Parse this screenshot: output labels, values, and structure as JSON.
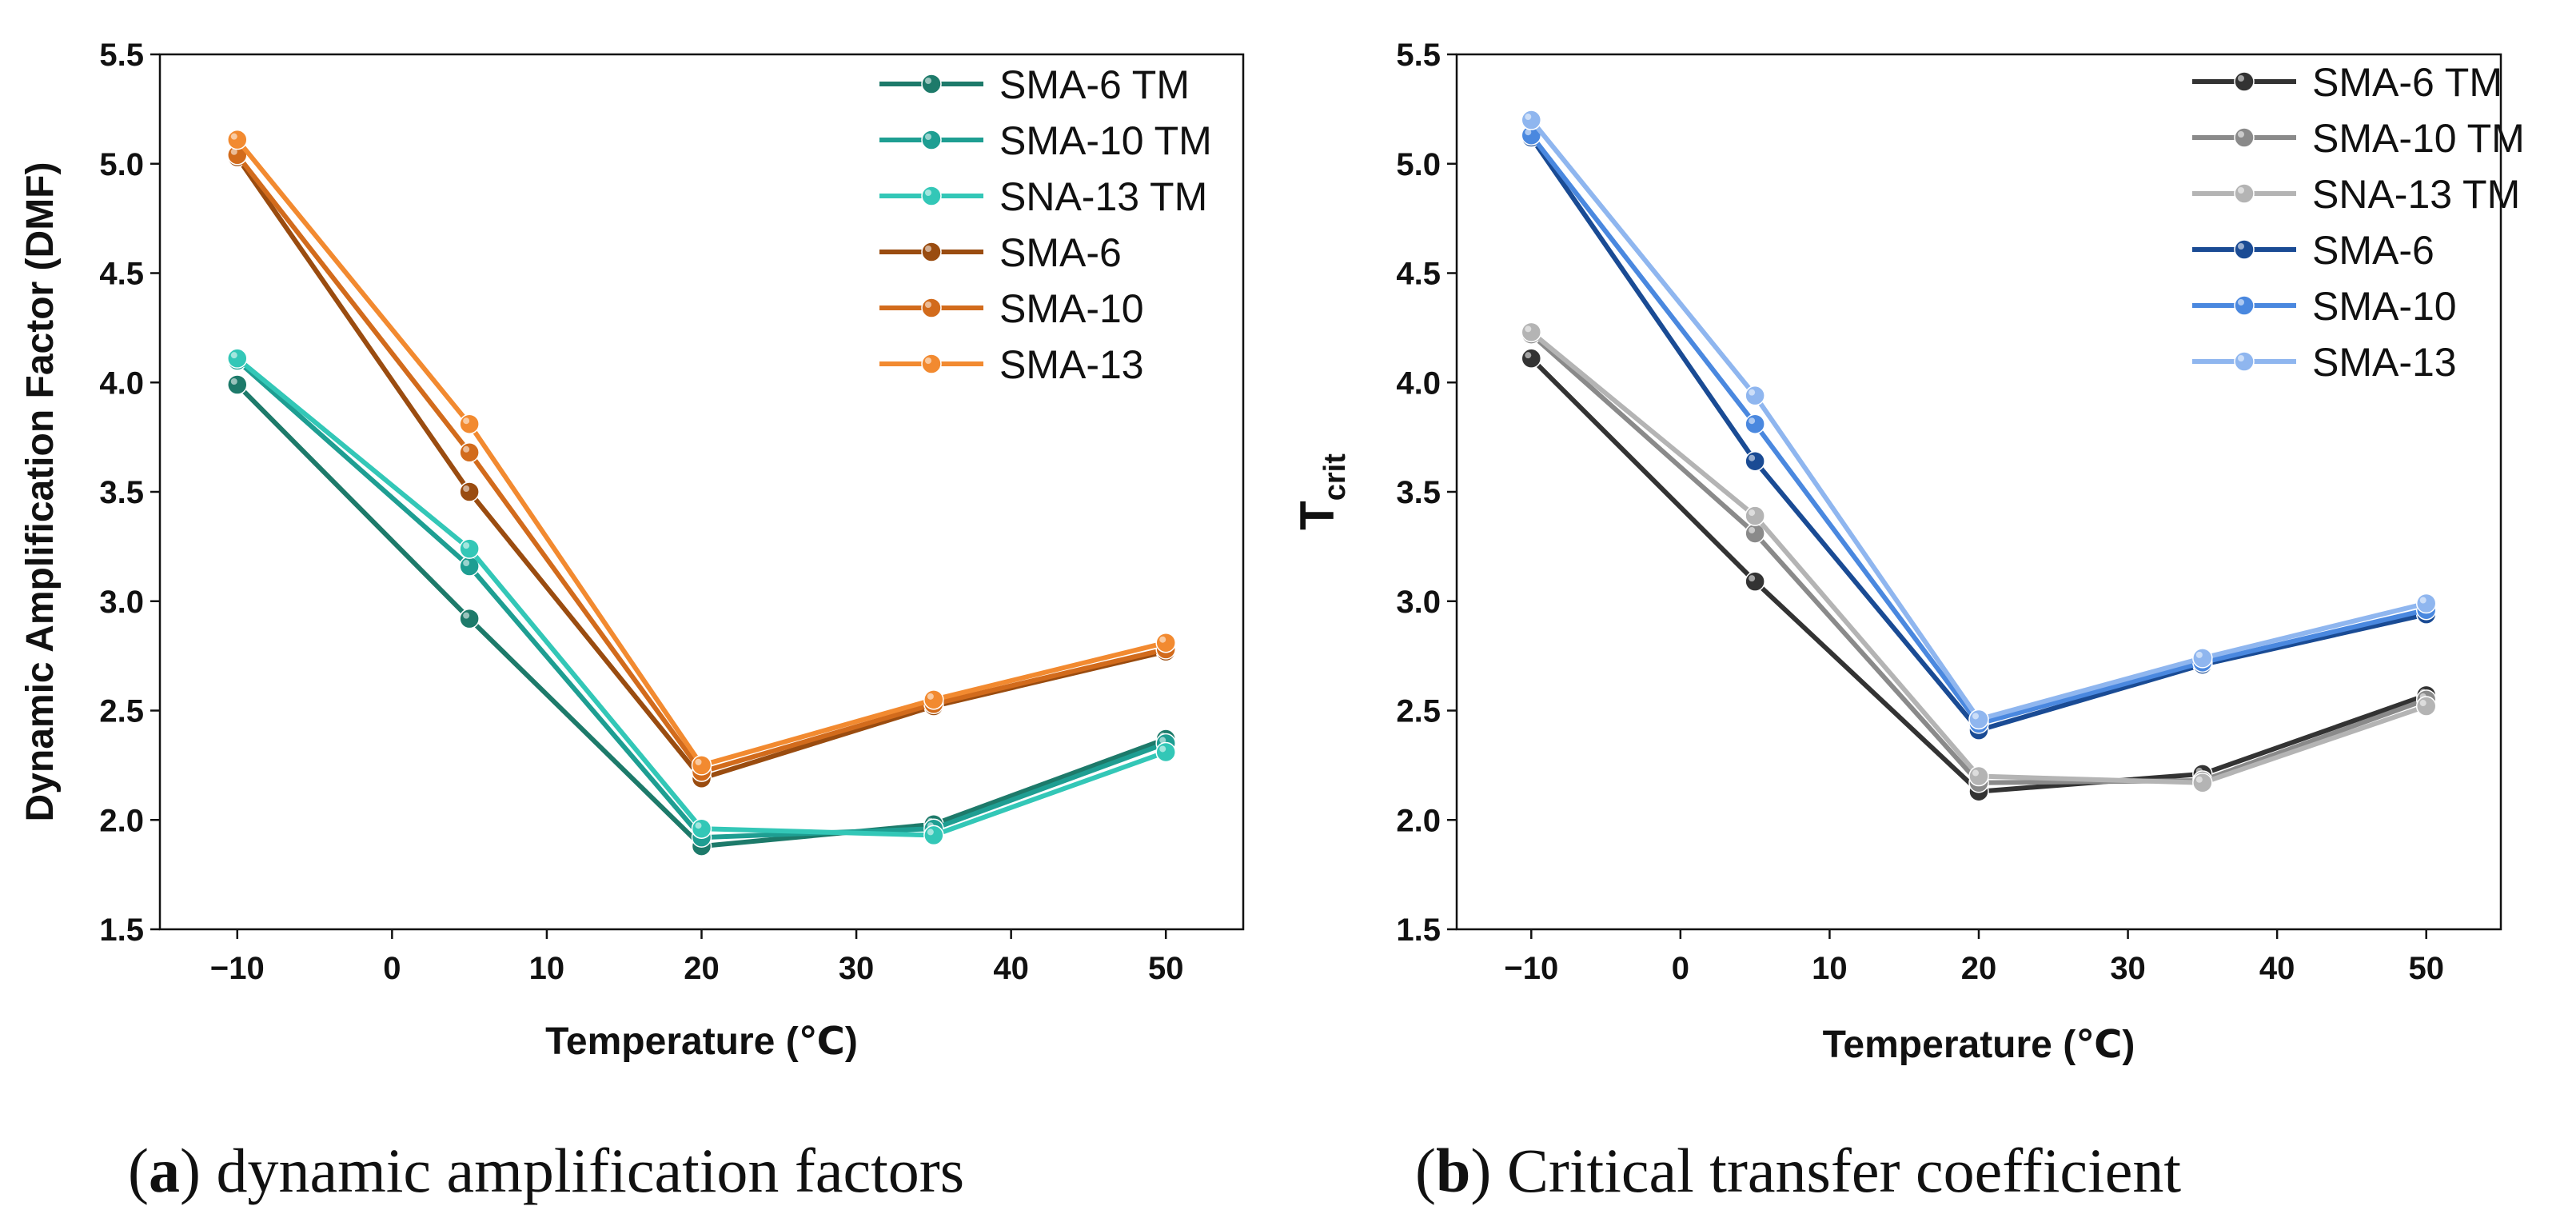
{
  "chart_data": [
    {
      "type": "line",
      "panel": "a",
      "caption_letter": "a",
      "caption_text": "dynamic amplification factors",
      "xlabel": "Temperature (℃)",
      "ylabel": "Dynamic Amplification Factor (DMF)",
      "xlim": [
        -15,
        55
      ],
      "ylim": [
        1.5,
        5.5
      ],
      "xticks": [
        -10,
        0,
        10,
        20,
        30,
        40,
        50
      ],
      "xtick_labels": [
        "−10",
        "0",
        "10",
        "20",
        "30",
        "40",
        "50"
      ],
      "yticks": [
        1.5,
        2.0,
        2.5,
        3.0,
        3.5,
        4.0,
        4.5,
        5.0,
        5.5
      ],
      "ytick_labels": [
        "1.5",
        "2.0",
        "2.5",
        "3.0",
        "3.5",
        "4.0",
        "4.5",
        "5.0",
        "5.5"
      ],
      "x": [
        -10,
        5,
        20,
        35,
        50
      ],
      "legend_position": "top-right",
      "series": [
        {
          "name": "SMA-6 TM",
          "color": "#1d7a6a",
          "values": [
            3.99,
            2.92,
            1.88,
            1.98,
            2.37
          ]
        },
        {
          "name": "SMA-10 TM",
          "color": "#1e9e92",
          "values": [
            4.1,
            3.16,
            1.92,
            1.96,
            2.35
          ]
        },
        {
          "name": "SNA-13 TM",
          "color": "#33c7b7",
          "values": [
            4.11,
            3.24,
            1.96,
            1.93,
            2.31
          ]
        },
        {
          "name": "SMA-6",
          "color": "#9a4c10",
          "values": [
            5.03,
            3.5,
            2.19,
            2.52,
            2.77
          ]
        },
        {
          "name": "SMA-10",
          "color": "#d26b1c",
          "values": [
            5.04,
            3.68,
            2.22,
            2.53,
            2.78
          ]
        },
        {
          "name": "SMA-13",
          "color": "#f28a30",
          "values": [
            5.11,
            3.81,
            2.25,
            2.55,
            2.81
          ]
        }
      ]
    },
    {
      "type": "line",
      "panel": "b",
      "caption_letter": "b",
      "caption_text": "Critical transfer coefficient",
      "xlabel": "Temperature (℃)",
      "ylabel_main": "T",
      "ylabel_sub": "crit",
      "xlim": [
        -15,
        55
      ],
      "ylim": [
        1.5,
        5.5
      ],
      "xticks": [
        -10,
        0,
        10,
        20,
        30,
        40,
        50
      ],
      "xtick_labels": [
        "−10",
        "0",
        "10",
        "20",
        "30",
        "40",
        "50"
      ],
      "yticks": [
        1.5,
        2.0,
        2.5,
        3.0,
        3.5,
        4.0,
        4.5,
        5.0,
        5.5
      ],
      "ytick_labels": [
        "1.5",
        "2.0",
        "2.5",
        "3.0",
        "3.5",
        "4.0",
        "4.5",
        "5.0",
        "5.5"
      ],
      "x": [
        -10,
        5,
        20,
        35,
        50
      ],
      "legend_position": "top-right",
      "series": [
        {
          "name": "SMA-6 TM",
          "color": "#333333",
          "values": [
            4.11,
            3.09,
            2.13,
            2.21,
            2.57
          ]
        },
        {
          "name": "SMA-10 TM",
          "color": "#8a8a8a",
          "values": [
            4.22,
            3.31,
            2.17,
            2.18,
            2.55
          ]
        },
        {
          "name": "SNA-13 TM",
          "color": "#b4b4b4",
          "values": [
            4.23,
            3.39,
            2.2,
            2.17,
            2.52
          ]
        },
        {
          "name": "SMA-6",
          "color": "#1a4b94",
          "values": [
            5.12,
            3.64,
            2.41,
            2.71,
            2.94
          ]
        },
        {
          "name": "SMA-10",
          "color": "#4a88df",
          "values": [
            5.13,
            3.81,
            2.44,
            2.72,
            2.96
          ]
        },
        {
          "name": "SMA-13",
          "color": "#8fb6ef",
          "values": [
            5.2,
            3.94,
            2.46,
            2.74,
            2.99
          ]
        }
      ]
    }
  ]
}
